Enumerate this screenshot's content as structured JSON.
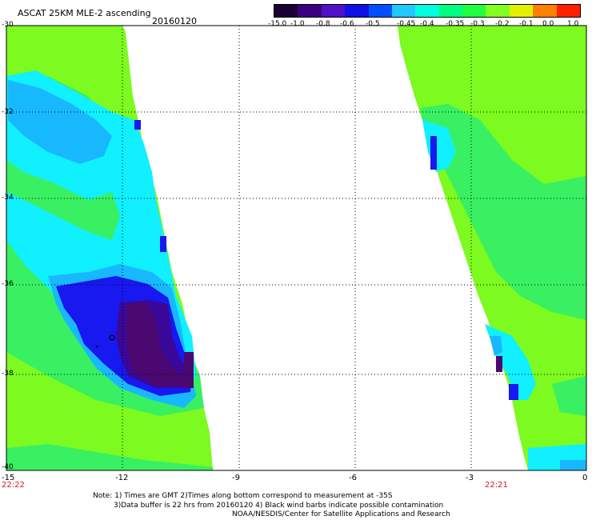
{
  "header": {
    "title": "ASCAT 25KM MLE-2 ascending",
    "date": "20160120"
  },
  "colorbar": {
    "labels": [
      "-15.0",
      "-1.0",
      "-0.8",
      "-0.6",
      "-0.5",
      "-0.45",
      "-0.4",
      "-0.35",
      "-0.3",
      "-0.2",
      "-0.1",
      "0.0",
      "1.0"
    ],
    "colors": [
      "#1a0033",
      "#3a0080",
      "#5010c8",
      "#1010e8",
      "#0050ff",
      "#20c8ff",
      "#00ffe0",
      "#00ff80",
      "#20ff40",
      "#80ff20",
      "#e0f000",
      "#ff8000",
      "#ff2000"
    ]
  },
  "map": {
    "lat_labels": [
      "-30",
      "-32",
      "-34",
      "-36",
      "-38",
      "-40"
    ],
    "lon_labels": [
      "-15",
      "-12",
      "-9",
      "-6",
      "-3",
      "0"
    ],
    "times": {
      "left": "22:22",
      "right": "22:21"
    },
    "colors": {
      "background": "#ffffff",
      "bright_green": "#7dfa20",
      "green": "#38f062",
      "cyan": "#10f0ff",
      "light_blue": "#18b8ff",
      "blue": "#1818f0",
      "dark_blue": "#3a0898",
      "purple": "#4a0870"
    }
  },
  "note": {
    "line1": "Note: 1) Times are GMT 2)Times along bottom correspond to measurement at -35S",
    "line2": "3)Data buffer is 22 hrs from 20160120 4) Black wind barbs indicate possible contamination",
    "line3": "NOAA/NESDIS/Center for Satellite Applications and Research"
  }
}
